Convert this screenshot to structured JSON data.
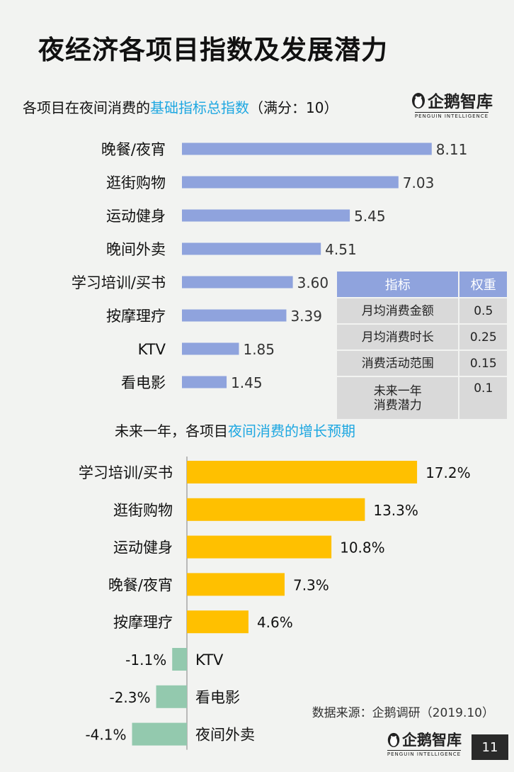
{
  "title": "夜经济各项目指数及发展潜力",
  "logo": {
    "text": "企鹅智库",
    "sub": "PENGUIN INTELLIGENCE"
  },
  "subtitle1": {
    "prefix": "各项目在夜间消费的",
    "highlight": "基础指标总指数",
    "suffix": "（满分：10）"
  },
  "subtitle2": {
    "prefix": "未来一年，各项目",
    "highlight": "夜间消费的增长预期"
  },
  "weight_table": {
    "headers": [
      "指标",
      "权重"
    ],
    "rows": [
      {
        "name": "月均消费金额",
        "value": "0.5"
      },
      {
        "name": "月均消费时长",
        "value": "0.25"
      },
      {
        "name": "消费活动范围",
        "value": "0.15"
      },
      {
        "name_line1": "未来一年",
        "name_line2": "消费潜力",
        "value": "0.1"
      }
    ]
  },
  "source": "数据来源：企鹅调研（2019.10）",
  "page_number": "11",
  "colors": {
    "bar1": "#8fa3dd",
    "positive": "#ffc000",
    "negative": "#93c9ae",
    "axis": "#a6a6a6"
  },
  "chart_data": [
    {
      "type": "bar",
      "orientation": "horizontal",
      "categories": [
        "晚餐/夜宵",
        "逛街购物",
        "运动健身",
        "晚间外卖",
        "学习培训/买书",
        "按摩理疗",
        "KTV",
        "看电影"
      ],
      "values": [
        8.11,
        7.03,
        5.45,
        4.51,
        3.6,
        3.39,
        1.85,
        1.45
      ],
      "labels": [
        "8.11",
        "7.03",
        "5.45",
        "4.51",
        "3.60",
        "3.39",
        "1.85",
        "1.45"
      ],
      "xlim": [
        0,
        10
      ]
    },
    {
      "type": "bar",
      "orientation": "horizontal",
      "categories": [
        "学习培训/买书",
        "逛街购物",
        "运动健身",
        "晚餐/夜宵",
        "按摩理疗",
        "KTV",
        "看电影",
        "夜间外卖"
      ],
      "values": [
        17.2,
        13.3,
        10.8,
        7.3,
        4.6,
        -1.1,
        -2.3,
        -4.1
      ],
      "labels": [
        "17.2%",
        "13.3%",
        "10.8%",
        "7.3%",
        "4.6%",
        "-1.1%",
        "-2.3%",
        "-4.1%"
      ],
      "unit": "%"
    }
  ]
}
